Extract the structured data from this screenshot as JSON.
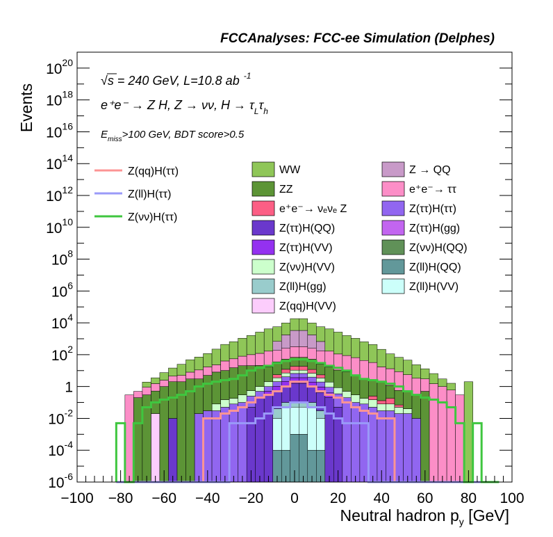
{
  "chart_data": {
    "type": "histogram",
    "title": "FCCAnalyses: FCC-ee Simulation (Delphes)",
    "xlabel": "Neutral hadron p",
    "xlabel_sub": "y",
    "xlabel_unit": " [GeV]",
    "ylabel": "Events",
    "y_scale": "log",
    "xlim": [
      -100,
      100
    ],
    "ylim_log10": [
      -6,
      21
    ],
    "bin_width": 4,
    "x_ticks": [
      "−100",
      "−80",
      "−60",
      "−40",
      "−20",
      "0",
      "20",
      "40",
      "60",
      "80",
      "100"
    ],
    "y_ticks": [
      {
        "base": "10",
        "exp": "20"
      },
      {
        "base": "10",
        "exp": "18"
      },
      {
        "base": "10",
        "exp": "16"
      },
      {
        "base": "10",
        "exp": "14"
      },
      {
        "base": "10",
        "exp": "12"
      },
      {
        "base": "10",
        "exp": "10"
      },
      {
        "base": "10",
        "exp": "8"
      },
      {
        "base": "10",
        "exp": "6"
      },
      {
        "base": "10",
        "exp": "4"
      },
      {
        "base": "10",
        "exp": "2"
      },
      {
        "base": "1",
        "exp": ""
      },
      {
        "base": "10",
        "exp": "-2"
      },
      {
        "base": "10",
        "exp": "-4"
      },
      {
        "base": "10",
        "exp": "-6"
      }
    ],
    "annotations": {
      "energy_pre": "√",
      "energy": "s = 240 GeV, L=10.8 ab",
      "energy_exp": "-1",
      "process": "e⁺e⁻ → Z H, Z → νν, H → τ",
      "process_sub1": "L",
      "process_tau": "τ",
      "process_sub2": "h",
      "selection_pre": "E",
      "selection_sub": "miss",
      "selection": ">100 GeV, BDT score>0.5"
    },
    "stack_legend": [
      {
        "label": "WW",
        "color": "#8fc658"
      },
      {
        "label": "Z → QQ",
        "color": "#c89ac8"
      },
      {
        "label": "ZZ",
        "color": "#5c9436"
      },
      {
        "label": "e⁺e⁻→ ττ",
        "color": "#fc8ec7"
      },
      {
        "label": "e⁺e⁻→ νₑνₑ Z",
        "color": "#fc5f85"
      },
      {
        "label": "Z(ττ)H(ττ)",
        "color": "#9166f0"
      },
      {
        "label": "Z(ττ)H(QQ)",
        "color": "#6a38cc"
      },
      {
        "label": "Z(ττ)H(gg)",
        "color": "#c265f0"
      },
      {
        "label": "Z(ττ)H(VV)",
        "color": "#9431f0"
      },
      {
        "label": "Z(νν)H(QQ)",
        "color": "#609158"
      },
      {
        "label": "Z(νν)H(VV)",
        "color": "#ccffcc"
      },
      {
        "label": "Z(ll)H(QQ)",
        "color": "#62989a"
      },
      {
        "label": "Z(ll)H(gg)",
        "color": "#99cccc"
      },
      {
        "label": "Z(ll)H(VV)",
        "color": "#ccfffa"
      },
      {
        "label": "Z(qq)H(VV)",
        "color": "#fccdfc"
      }
    ],
    "signal_legend": [
      {
        "label": "Z(qq)H(ττ)",
        "color": "#fc9494"
      },
      {
        "label": "Z(ll)H(ττ)",
        "color": "#9a9af8"
      },
      {
        "label": "Z(νν)H(ττ)",
        "color": "#3fc63f"
      }
    ],
    "bin_edges": [
      -82,
      -78,
      -74,
      -70,
      -66,
      -62,
      -58,
      -54,
      -50,
      -46,
      -42,
      -38,
      -34,
      -30,
      -26,
      -22,
      -18,
      -14,
      -10,
      -6,
      -2,
      2,
      6,
      10,
      14,
      18,
      22,
      26,
      30,
      34,
      38,
      42,
      46,
      50,
      54,
      58,
      62,
      66,
      70,
      74,
      78,
      82,
      86,
      90,
      94
    ],
    "stack_layers": [
      {
        "name": "Z(ll)H(QQ)",
        "values": [
          0,
          0,
          0,
          0,
          0,
          0,
          0,
          0,
          0,
          0,
          0,
          0,
          0,
          0,
          0,
          0,
          0,
          0,
          0.0001,
          0.0001,
          0.001,
          0.001,
          0.0001,
          0.0001,
          0,
          0,
          0,
          0,
          0,
          0,
          0,
          0,
          0,
          0,
          0,
          0,
          0,
          0,
          0,
          0,
          0,
          0,
          0,
          0
        ]
      },
      {
        "name": "Z(ll)H(VV)",
        "values": [
          0,
          0,
          0,
          0,
          0,
          0,
          0,
          0,
          0,
          0,
          0,
          0,
          0,
          0,
          0,
          0,
          0,
          0,
          0.01,
          0.05,
          0.05,
          0.05,
          0.05,
          0.01,
          0,
          0,
          0,
          0,
          0,
          0,
          0,
          0,
          0,
          0,
          0,
          0,
          0,
          0,
          0,
          0,
          0,
          0,
          0,
          0
        ]
      },
      {
        "name": "Z(ll)H(gg)",
        "values": [
          0,
          0,
          0,
          0,
          0,
          0,
          0,
          0,
          0,
          0,
          0,
          0,
          0,
          0,
          0,
          0,
          0,
          0,
          0.03,
          0.05,
          0.05,
          0.05,
          0.05,
          0.02,
          0,
          0,
          0,
          0,
          0,
          0,
          0,
          0,
          0,
          0,
          0,
          0,
          0,
          0,
          0,
          0,
          0,
          0,
          0,
          0
        ]
      },
      {
        "name": "Z(qq)H(VV)",
        "values": [
          0,
          0,
          0,
          0,
          0.02,
          0,
          0,
          0,
          0,
          0,
          0,
          0,
          0,
          0,
          0,
          0,
          0,
          0,
          0,
          0,
          0,
          0,
          0,
          0,
          0,
          0,
          0,
          0,
          0,
          0,
          0,
          0,
          0,
          0,
          0,
          0,
          0,
          0,
          0,
          0,
          0,
          0,
          0,
          0
        ]
      },
      {
        "name": "Z(ττ)H(QQ)",
        "values": [
          0,
          0,
          0,
          0,
          0,
          0,
          0.01,
          0,
          0,
          0,
          0,
          0,
          0,
          0,
          0,
          0.05,
          0.2,
          0.3,
          0.5,
          1.0,
          1.5,
          1.5,
          0.8,
          0.4,
          0.2,
          0.05,
          0,
          0,
          0,
          0,
          0,
          0,
          0,
          0,
          0,
          0,
          0,
          0,
          0,
          0,
          0,
          0,
          0,
          0
        ]
      },
      {
        "name": "Z(ττ)H(VV)",
        "values": [
          0,
          0,
          0,
          0,
          0,
          0,
          0,
          0,
          0,
          0,
          0,
          0,
          0,
          0,
          0,
          0,
          0,
          0.2,
          0.5,
          1.0,
          2.0,
          2.0,
          1.0,
          0.5,
          0.2,
          0,
          0,
          0,
          0,
          0,
          0,
          0,
          0,
          0,
          0,
          0,
          0,
          0,
          0,
          0,
          0,
          0,
          0,
          0
        ]
      },
      {
        "name": "Z(ττ)H(ττ)",
        "values": [
          0,
          0,
          0,
          0,
          0,
          0,
          0,
          0,
          0,
          0.02,
          0.03,
          0.03,
          0.05,
          0.08,
          0.1,
          0.2,
          0.3,
          0.5,
          1.0,
          2.0,
          3.0,
          3.0,
          2.0,
          1.0,
          0.5,
          0.3,
          0.2,
          0.1,
          0.08,
          0.05,
          0.03,
          0.03,
          0.02,
          0.02,
          0.01,
          0,
          0,
          0,
          0,
          0,
          0,
          0,
          0,
          0
        ]
      },
      {
        "name": "Z(νν)H(VV)",
        "values": [
          0,
          0,
          0,
          0,
          0,
          0,
          0,
          0,
          0,
          0,
          0,
          0.05,
          0.1,
          0.1,
          0.2,
          0.3,
          0.5,
          1.0,
          1.5,
          3.0,
          4.0,
          4.0,
          3.0,
          1.5,
          1.0,
          0.5,
          0.3,
          0.2,
          0.1,
          0.1,
          0.05,
          0.05,
          0.03,
          0.02,
          0,
          0,
          0,
          0,
          0,
          0,
          0,
          0,
          0,
          0
        ]
      },
      {
        "name": "e⁺e⁻→ νₑνₑ Z",
        "values": [
          0,
          0,
          0,
          0,
          0,
          0,
          0,
          0,
          0,
          0,
          0,
          0,
          0,
          0,
          0,
          0,
          0,
          0,
          2,
          5,
          8,
          8,
          5,
          2,
          0,
          0,
          0,
          0,
          0,
          0.1,
          0.05,
          0.1,
          0.02,
          0,
          0,
          0,
          0,
          0,
          0,
          0,
          0,
          0,
          0,
          0
        ]
      },
      {
        "name": "ZZ",
        "values": [
          0,
          0,
          0.2,
          0.3,
          0.5,
          1,
          2,
          2,
          3,
          3,
          5,
          8,
          10,
          15,
          20,
          20,
          20,
          15,
          30,
          40,
          50,
          50,
          40,
          20,
          15,
          10,
          8,
          5,
          3,
          2,
          2,
          1,
          0.5,
          0.5,
          0.3,
          0.5,
          0,
          0,
          0,
          0,
          0,
          0,
          0,
          0
        ]
      },
      {
        "name": "e⁺e⁻→ ττ",
        "values": [
          0,
          0.3,
          0.3,
          0.6,
          1,
          1.5,
          2.5,
          3,
          5,
          8,
          12,
          15,
          30,
          40,
          60,
          80,
          100,
          150,
          150,
          200,
          250,
          250,
          200,
          150,
          150,
          100,
          80,
          60,
          40,
          30,
          15,
          12,
          8,
          5,
          3,
          2.5,
          1.5,
          1,
          0.6,
          0.3,
          0,
          0,
          0,
          0
        ]
      },
      {
        "name": "Z → QQ",
        "values": [
          0,
          0,
          0,
          0,
          0,
          0,
          0,
          0,
          0,
          0,
          0,
          0,
          0,
          0,
          0,
          0,
          0,
          0,
          500,
          1500,
          3000,
          3000,
          1500,
          500,
          0,
          0,
          0,
          0,
          0,
          0,
          0,
          0,
          0,
          0,
          0,
          0,
          0,
          0,
          0,
          0,
          0,
          0,
          0,
          0
        ]
      },
      {
        "name": "WW",
        "values": [
          0,
          0,
          0,
          1,
          2,
          5,
          10,
          20,
          40,
          60,
          100,
          200,
          400,
          600,
          1000,
          1500,
          2500,
          4000,
          5000,
          8000,
          15000,
          15000,
          8000,
          5000,
          4000,
          2500,
          1500,
          1000,
          600,
          400,
          200,
          100,
          60,
          40,
          20,
          10,
          5,
          2,
          1,
          0,
          2,
          0,
          0,
          0
        ]
      }
    ],
    "signal_lines": [
      {
        "name": "Z(qq)H(ττ)",
        "values": [
          0,
          0,
          0,
          0,
          0,
          0,
          0,
          0,
          0,
          0,
          0.01,
          0.01,
          0.02,
          0.03,
          0.05,
          0.1,
          0.2,
          0.3,
          0.5,
          1,
          2,
          2,
          1,
          0.5,
          0.3,
          0.2,
          0.1,
          0.05,
          0.03,
          0.02,
          0.01,
          0.01,
          0,
          0,
          0,
          0,
          0,
          0,
          0,
          0,
          0,
          0,
          0,
          0
        ]
      },
      {
        "name": "Z(ll)H(ττ)",
        "values": [
          0,
          0,
          0,
          0,
          0,
          0,
          0,
          0,
          0,
          0,
          0,
          0,
          0,
          0.005,
          0.005,
          0.005,
          0.01,
          0.02,
          0.05,
          0.05,
          0.1,
          0.1,
          0.05,
          0.05,
          0.02,
          0.01,
          0.005,
          0.005,
          0.005,
          0,
          0,
          0,
          0,
          0,
          0,
          0,
          0,
          0,
          0,
          0,
          0,
          0,
          0,
          0
        ]
      },
      {
        "name": "Z(νν)H(ττ)",
        "values": [
          0.005,
          0,
          0.005,
          0.05,
          0.1,
          0.15,
          0.2,
          0.3,
          0.5,
          1,
          1.5,
          2,
          2.5,
          3,
          5,
          10,
          15,
          20,
          30,
          40,
          50,
          50,
          40,
          30,
          20,
          15,
          10,
          5,
          3,
          2.5,
          2,
          1.5,
          1,
          0.5,
          0.3,
          0.2,
          0.15,
          0.1,
          0.05,
          0.005,
          0,
          0.005,
          0,
          0
        ]
      }
    ]
  }
}
